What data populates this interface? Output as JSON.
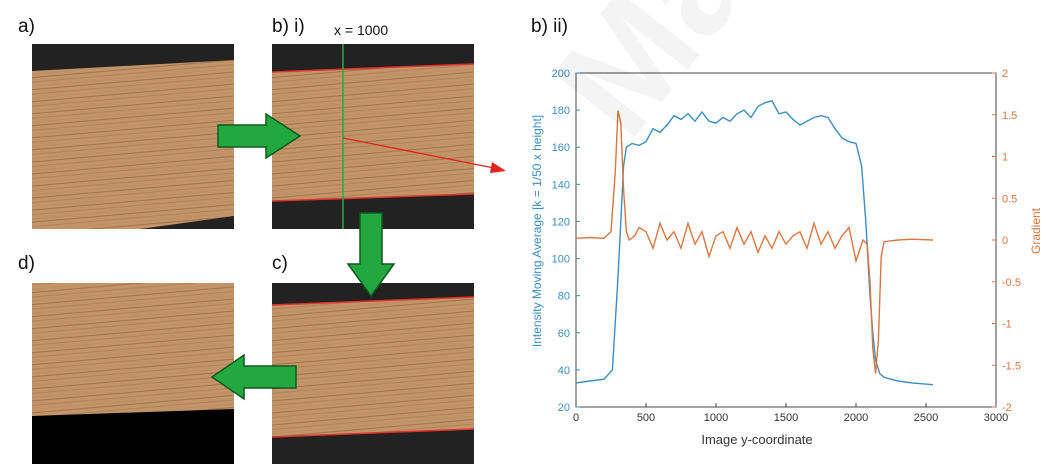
{
  "panels": {
    "a": {
      "label": "a)"
    },
    "bi": {
      "label": "b) i)",
      "marker": "x = 1000"
    },
    "bii": {
      "label": "b) ii)"
    },
    "c": {
      "label": "c)"
    },
    "d": {
      "label": "d)"
    }
  },
  "watermark": "Malaya",
  "colors": {
    "wood_light": "#c29468",
    "wood_dark": "#9b6e47",
    "background_dark": "#222222",
    "edge_line": "#e0312a",
    "scan_line": "#2aa84a",
    "flow_arrow": "#22a83f",
    "pointer_arrow": "#e0251c",
    "intensity_series": "#3b8ec0",
    "gradient_series": "#d9773f"
  },
  "chart_data": {
    "type": "line",
    "title": "",
    "xlabel": "Image y-coordinate",
    "ylabel_left": "Intensity Moving Average [k = 1/50 x height]",
    "ylabel_right": "Gradient",
    "xlim": [
      0,
      3000
    ],
    "ylim_left": [
      20,
      200
    ],
    "ylim_right": [
      -2,
      2
    ],
    "xticks": [
      0,
      500,
      1000,
      1500,
      2000,
      2500,
      3000
    ],
    "yticks_left": [
      20,
      40,
      60,
      80,
      100,
      120,
      140,
      160,
      180,
      200
    ],
    "yticks_right": [
      -2,
      -1.5,
      -1,
      -0.5,
      0,
      0.5,
      1,
      1.5,
      2
    ],
    "grid": false,
    "series": [
      {
        "axis": "left",
        "x": [
          0,
          100,
          200,
          260,
          300,
          340,
          360,
          400,
          450,
          500,
          550,
          600,
          650,
          700,
          750,
          800,
          850,
          900,
          950,
          1000,
          1050,
          1100,
          1150,
          1200,
          1250,
          1300,
          1350,
          1400,
          1450,
          1500,
          1550,
          1600,
          1650,
          1700,
          1750,
          1800,
          1850,
          1900,
          1950,
          2000,
          2040,
          2070,
          2100,
          2120,
          2140,
          2170,
          2200,
          2300,
          2400,
          2550
        ],
        "y": [
          33,
          34,
          35,
          40,
          90,
          150,
          160,
          162,
          161,
          163,
          170,
          168,
          172,
          177,
          175,
          178,
          174,
          179,
          174,
          173,
          176,
          174,
          178,
          180,
          176,
          182,
          184,
          185,
          178,
          179,
          175,
          172,
          174,
          176,
          177,
          176,
          170,
          165,
          163,
          162,
          150,
          120,
          80,
          60,
          45,
          38,
          36,
          34,
          33,
          32
        ]
      },
      {
        "axis": "right",
        "x": [
          0,
          100,
          200,
          250,
          280,
          300,
          320,
          340,
          360,
          380,
          420,
          450,
          500,
          550,
          600,
          650,
          700,
          750,
          800,
          850,
          900,
          950,
          1000,
          1050,
          1100,
          1150,
          1200,
          1250,
          1300,
          1350,
          1400,
          1450,
          1500,
          1550,
          1600,
          1650,
          1700,
          1750,
          1800,
          1850,
          1900,
          1950,
          2000,
          2050,
          2080,
          2100,
          2120,
          2140,
          2160,
          2180,
          2200,
          2300,
          2400,
          2550
        ],
        "y": [
          0.02,
          0.03,
          0.02,
          0.1,
          0.8,
          1.55,
          1.4,
          0.6,
          0.1,
          0.0,
          0.05,
          0.15,
          0.1,
          -0.1,
          0.2,
          0.0,
          0.1,
          -0.1,
          0.2,
          -0.05,
          0.1,
          -0.2,
          0.05,
          0.1,
          -0.1,
          0.15,
          -0.05,
          0.1,
          -0.15,
          0.05,
          -0.1,
          0.1,
          -0.05,
          0.05,
          0.1,
          -0.1,
          0.2,
          -0.05,
          0.1,
          -0.1,
          0.05,
          0.15,
          -0.25,
          0.0,
          -0.05,
          -0.5,
          -1.3,
          -1.6,
          -1.2,
          -0.2,
          -0.02,
          0.0,
          0.01,
          0.0
        ]
      }
    ]
  }
}
